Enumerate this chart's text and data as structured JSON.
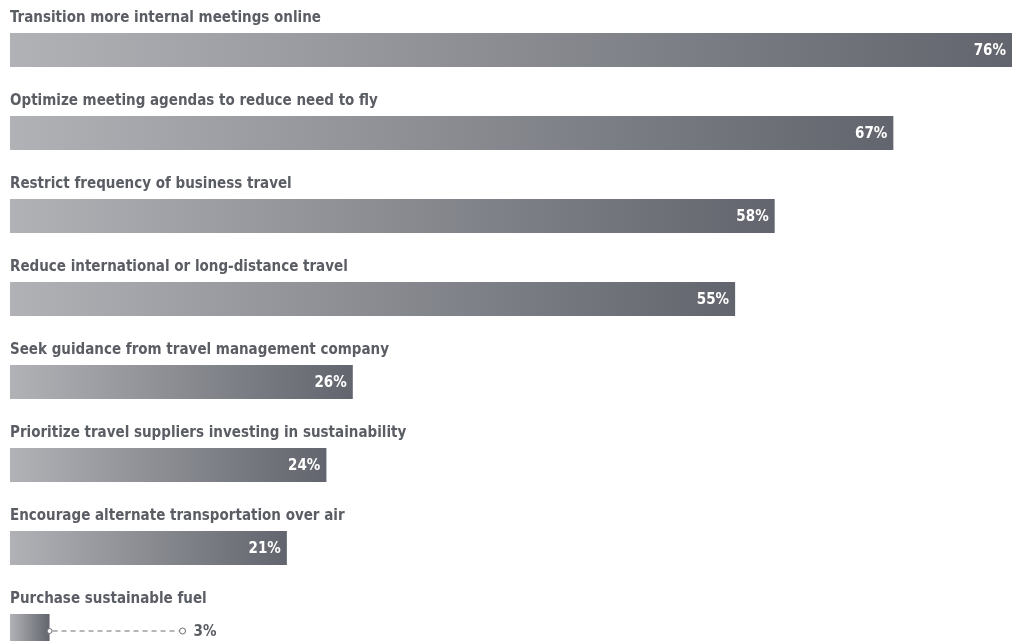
{
  "chart_data": {
    "type": "bar",
    "orientation": "horizontal",
    "categories": [
      "Transition more internal meetings online",
      "Optimize meeting agendas to reduce need to fly",
      "Restrict frequency of business travel",
      "Reduce international or long-distance travel",
      "Seek guidance from travel management company",
      "Prioritize travel suppliers investing in sustainability",
      "Encourage alternate transportation over air",
      "Purchase sustainable fuel"
    ],
    "series": [
      {
        "color": "#62656d",
        "values": [
          76,
          67,
          58,
          55,
          26,
          24,
          21,
          3
        ],
        "value_labels": [
          "76%",
          "67%",
          "58%",
          "55%",
          "26%",
          "24%",
          "21%",
          "3%"
        ]
      }
    ]
  }
}
